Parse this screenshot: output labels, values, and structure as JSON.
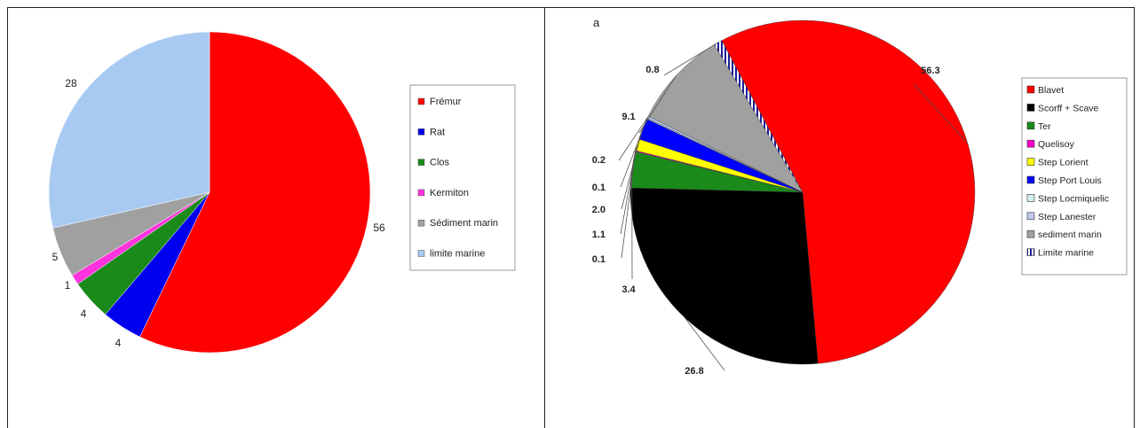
{
  "chart_data": [
    {
      "type": "pie",
      "title": "",
      "slices": [
        {
          "label": "Frémur",
          "value": 56,
          "display": "56",
          "color": "#ff0000"
        },
        {
          "label": "Rat",
          "value": 4,
          "display": "4",
          "color": "#0000ee"
        },
        {
          "label": "Clos",
          "value": 4,
          "display": "4",
          "color": "#1a8a1a"
        },
        {
          "label": "Kermiton",
          "value": 1,
          "display": "1",
          "color": "#ff33dd"
        },
        {
          "label": "Sédiment marin",
          "value": 5,
          "display": "5",
          "color": "#a0a0a0"
        },
        {
          "label": "limite marine",
          "value": 28,
          "display": "28",
          "color": "#a8caf2"
        }
      ],
      "legend": {
        "position": "right",
        "entries": [
          "Frémur",
          "Rat",
          "Clos",
          "Kermiton",
          "Sédiment marin",
          "limite marine"
        ]
      }
    },
    {
      "type": "pie",
      "title": "a",
      "slices": [
        {
          "label": "Blavet",
          "value": 56.3,
          "display": "56.3",
          "color": "#ff0000"
        },
        {
          "label": "Scorff + Scave",
          "value": 26.8,
          "display": "26.8",
          "color": "#000000"
        },
        {
          "label": "Ter",
          "value": 3.4,
          "display": "3.4",
          "color": "#1a8a1a"
        },
        {
          "label": "Quelisoy",
          "value": 0.1,
          "display": "0.1",
          "color": "#ff00cc"
        },
        {
          "label": "Step Lorient",
          "value": 1.1,
          "display": "1.1",
          "color": "#ffff00"
        },
        {
          "label": "Step Port Louis",
          "value": 2.0,
          "display": "2.0",
          "color": "#0000ff"
        },
        {
          "label": "Step Locmiquelic",
          "value": 0.1,
          "display": "0.1",
          "color": "#d0f0f0"
        },
        {
          "label": "Step Lanester",
          "value": 0.2,
          "display": "0.2",
          "color": "#c0c8f0"
        },
        {
          "label": "sediment marin",
          "value": 9.1,
          "display": "9.1",
          "color": "#a0a0a0"
        },
        {
          "label": "Limite marine",
          "value": 0.8,
          "display": "0.8",
          "color": "#2020a0",
          "pattern": "stripes"
        }
      ],
      "legend": {
        "position": "right",
        "entries": [
          "Blavet",
          "Scorff + Scave",
          "Ter",
          "Quelisoy",
          "Step Lorient",
          "Step Port Louis",
          "Step Locmiquelic",
          "Step Lanester",
          "sediment marin",
          "Limite marine"
        ]
      }
    }
  ]
}
